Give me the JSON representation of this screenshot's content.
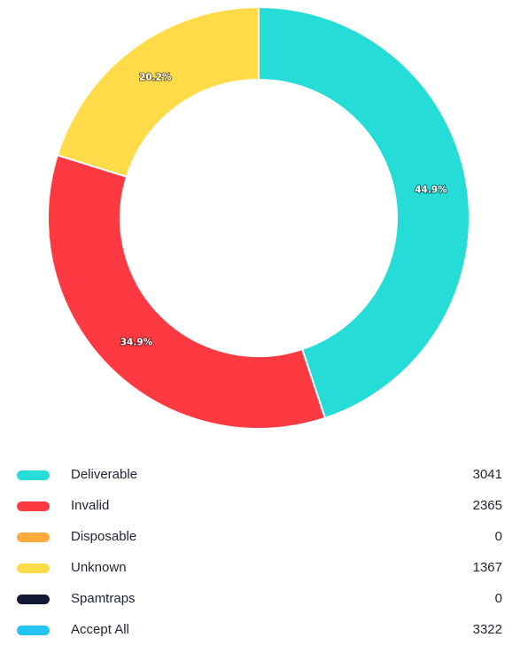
{
  "chart_data": {
    "type": "pie",
    "style": "donut",
    "slices": [
      {
        "name": "Deliverable",
        "count": 3041,
        "percent_label": "44.9%",
        "color": "#26dcd6"
      },
      {
        "name": "Invalid",
        "count": 2365,
        "percent_label": "34.9%",
        "color": "#fd3a42"
      },
      {
        "name": "Disposable",
        "count": 0,
        "percent_label": "",
        "color": "#ffab3e"
      },
      {
        "name": "Unknown",
        "count": 1367,
        "percent_label": "20.2%",
        "color": "#ffdb4a"
      },
      {
        "name": "Spamtraps",
        "count": 0,
        "percent_label": "",
        "color": "#141a35"
      }
    ],
    "legend": [
      {
        "label": "Deliverable",
        "value": "3041",
        "color": "#26dcd6"
      },
      {
        "label": "Invalid",
        "value": "2365",
        "color": "#fd3a42"
      },
      {
        "label": "Disposable",
        "value": "0",
        "color": "#ffab3e"
      },
      {
        "label": "Unknown",
        "value": "1367",
        "color": "#ffdb4a"
      },
      {
        "label": "Spamtraps",
        "value": "0",
        "color": "#141a35"
      },
      {
        "label": "Accept All",
        "value": "3322",
        "color": "#23c4f1"
      }
    ],
    "legend_position": "bottom"
  }
}
